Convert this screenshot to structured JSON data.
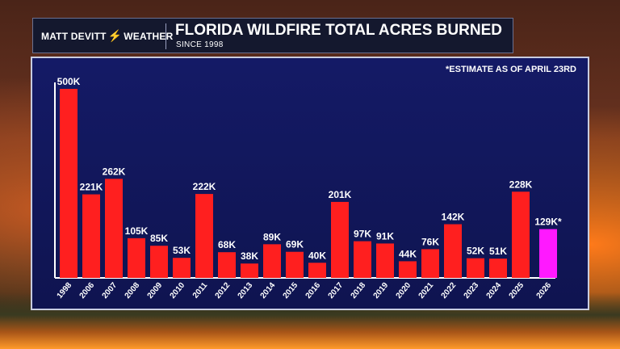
{
  "header": {
    "brand_name": "MATT DEVITT",
    "brand_suffix": "WEATHER",
    "title": "FLORIDA WILDFIRE TOTAL ACRES BURNED",
    "subtitle": "SINCE 1998"
  },
  "note": "*ESTIMATE AS OF APRIL 23RD",
  "colors": {
    "bar": "#ff1f1f",
    "estimate_bar": "#ff19ff",
    "panel": "#131a62",
    "axis": "#ffffff"
  },
  "icons": [
    "lightning-bolt-icon"
  ],
  "chart_data": {
    "type": "bar",
    "title": "FLORIDA WILDFIRE TOTAL ACRES BURNED",
    "subtitle": "SINCE 1998",
    "categories": [
      "1998",
      "2006",
      "2007",
      "2008",
      "2009",
      "2010",
      "2011",
      "2012",
      "2013",
      "2014",
      "2015",
      "2016",
      "2017",
      "2018",
      "2019",
      "2020",
      "2021",
      "2022",
      "2023",
      "2024",
      "2025",
      "2026"
    ],
    "values": [
      500000,
      221000,
      262000,
      105000,
      85000,
      53000,
      222000,
      68000,
      38000,
      89000,
      69000,
      40000,
      201000,
      97000,
      91000,
      44000,
      76000,
      142000,
      52000,
      51000,
      228000,
      129000
    ],
    "labels": [
      "500K",
      "221K",
      "262K",
      "105K",
      "85K",
      "53K",
      "222K",
      "68K",
      "38K",
      "89K",
      "69K",
      "40K",
      "201K",
      "97K",
      "91K",
      "44K",
      "76K",
      "142K",
      "52K",
      "51K",
      "228K",
      "129K*"
    ],
    "estimated": [
      false,
      false,
      false,
      false,
      false,
      false,
      false,
      false,
      false,
      false,
      false,
      false,
      false,
      false,
      false,
      false,
      false,
      false,
      false,
      false,
      false,
      true
    ],
    "ylim": [
      0,
      500000
    ],
    "grid": false,
    "xlabel": "",
    "ylabel": ""
  }
}
